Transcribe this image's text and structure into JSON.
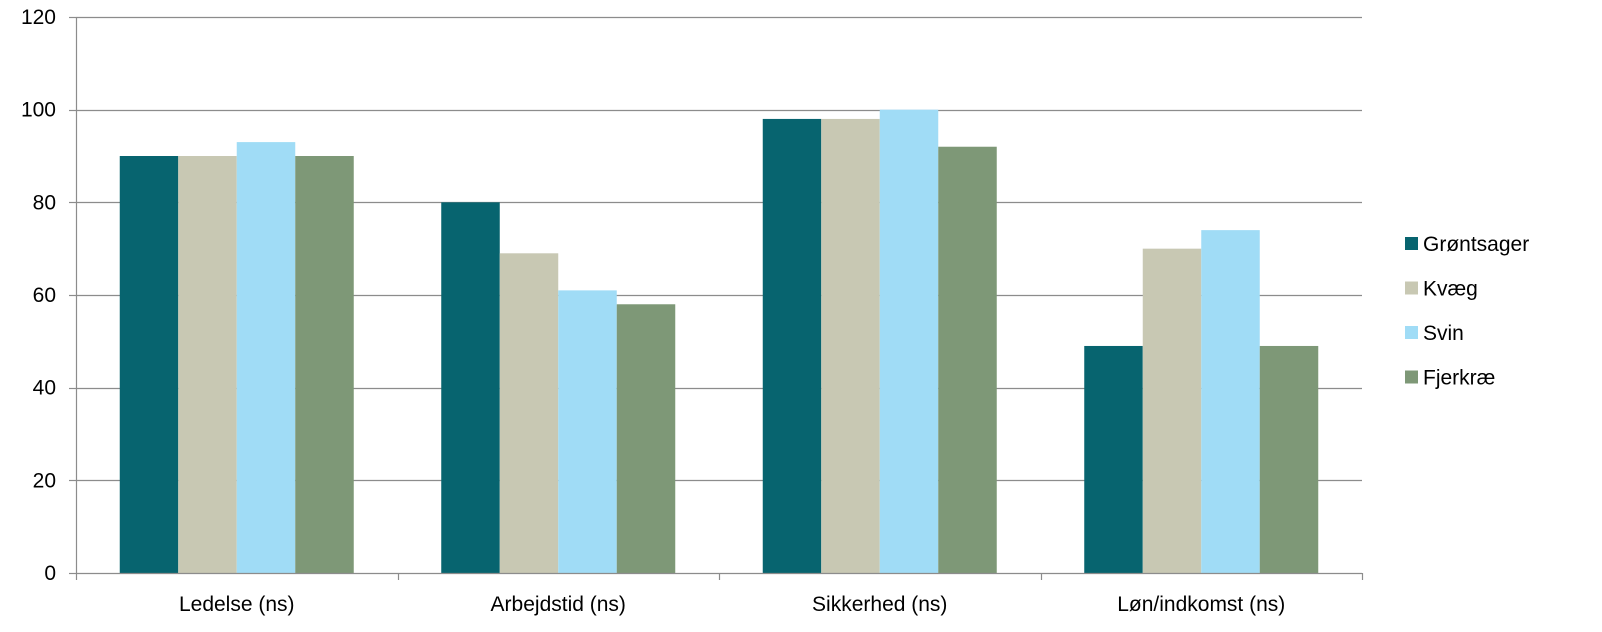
{
  "chart_data": {
    "type": "bar",
    "title": "",
    "xlabel": "",
    "ylabel": "",
    "categories": [
      "Ledelse (ns)",
      "Arbejdstid (ns)",
      "Sikkerhed (ns)",
      "Løn/indkomst (ns)"
    ],
    "series": [
      {
        "name": "Grøntsager",
        "color": "#07646F",
        "values": [
          90,
          80,
          98,
          49
        ]
      },
      {
        "name": "Kvæg",
        "color": "#C8C8B3",
        "values": [
          90,
          69,
          98,
          70
        ]
      },
      {
        "name": "Svin",
        "color": "#A0DCF6",
        "values": [
          93,
          61,
          100,
          74
        ]
      },
      {
        "name": "Fjerkræ",
        "color": "#7E9877",
        "values": [
          90,
          58,
          92,
          49
        ]
      }
    ],
    "ylim": [
      0,
      120
    ],
    "yticks": [
      0,
      20,
      40,
      60,
      80,
      100,
      120
    ],
    "grid": true,
    "legend_position": "right"
  }
}
